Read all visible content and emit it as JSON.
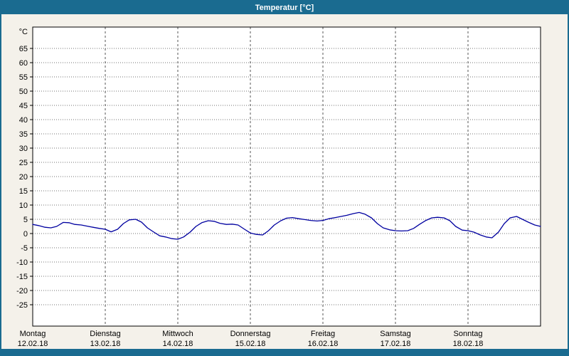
{
  "window": {
    "title": "Temperatur [°C]",
    "colors": {
      "title_bar": "#1a6b90",
      "background": "#f4f1ea",
      "plot_background": "#ffffff",
      "plot_border": "#000000",
      "grid": "#737373",
      "line": "#0000a0",
      "title_text": "#ffffff"
    }
  },
  "chart_data": {
    "type": "line",
    "title": "Temperatur [°C]",
    "ylabel": "°C",
    "ylim": [
      -32.5,
      72.5
    ],
    "y_ticks": [
      65,
      60,
      55,
      50,
      45,
      40,
      35,
      30,
      25,
      20,
      15,
      10,
      5,
      0,
      -5,
      -10,
      -15,
      -20,
      -25
    ],
    "grid": "dotted",
    "legend": "none",
    "x_axis": {
      "unit": "days",
      "range_days": [
        0,
        7
      ],
      "days": [
        {
          "name": "Montag",
          "date": "12.02.18"
        },
        {
          "name": "Dienstag",
          "date": "13.02.18"
        },
        {
          "name": "Mittwoch",
          "date": "14.02.18"
        },
        {
          "name": "Donnerstag",
          "date": "15.02.18"
        },
        {
          "name": "Freitag",
          "date": "16.02.18"
        },
        {
          "name": "Samstag",
          "date": "17.02.18"
        },
        {
          "name": "Sonntag",
          "date": "18.02.18"
        }
      ]
    },
    "series": [
      {
        "name": "Temperatur",
        "color": "#0000a0",
        "x": [
          0.0,
          0.08,
          0.17,
          0.25,
          0.33,
          0.42,
          0.5,
          0.58,
          0.67,
          0.75,
          0.83,
          0.92,
          1.0,
          1.08,
          1.17,
          1.25,
          1.33,
          1.42,
          1.5,
          1.58,
          1.67,
          1.75,
          1.83,
          1.92,
          2.0,
          2.08,
          2.17,
          2.25,
          2.33,
          2.42,
          2.5,
          2.58,
          2.67,
          2.75,
          2.83,
          2.92,
          3.0,
          3.08,
          3.17,
          3.25,
          3.33,
          3.42,
          3.5,
          3.58,
          3.67,
          3.75,
          3.83,
          3.92,
          4.0,
          4.08,
          4.17,
          4.25,
          4.33,
          4.42,
          4.5,
          4.58,
          4.67,
          4.75,
          4.83,
          4.92,
          5.0,
          5.08,
          5.17,
          5.25,
          5.33,
          5.42,
          5.5,
          5.58,
          5.67,
          5.75,
          5.83,
          5.92,
          6.0,
          6.08,
          6.17,
          6.25,
          6.33,
          6.42,
          6.5,
          6.58,
          6.67,
          6.75,
          6.83,
          6.92,
          7.0
        ],
        "y": [
          3.2,
          2.8,
          2.2,
          2.0,
          2.5,
          3.9,
          3.8,
          3.2,
          3.0,
          2.6,
          2.2,
          1.8,
          1.5,
          0.6,
          1.5,
          3.5,
          4.8,
          5.0,
          4.0,
          2.0,
          0.5,
          -0.8,
          -1.2,
          -1.8,
          -2.0,
          -1.2,
          0.5,
          2.5,
          3.8,
          4.5,
          4.3,
          3.6,
          3.2,
          3.3,
          3.0,
          1.5,
          0.2,
          -0.3,
          -0.5,
          1.0,
          3.0,
          4.5,
          5.4,
          5.6,
          5.2,
          4.9,
          4.6,
          4.4,
          4.6,
          5.2,
          5.6,
          6.0,
          6.4,
          7.0,
          7.4,
          6.8,
          5.5,
          3.5,
          2.0,
          1.3,
          1.0,
          0.9,
          1.0,
          1.8,
          3.2,
          4.6,
          5.5,
          5.7,
          5.5,
          4.5,
          2.5,
          1.2,
          1.0,
          0.5,
          -0.5,
          -1.2,
          -1.5,
          0.5,
          3.5,
          5.5,
          6.0,
          5.0,
          4.0,
          3.0,
          2.5
        ]
      }
    ]
  }
}
